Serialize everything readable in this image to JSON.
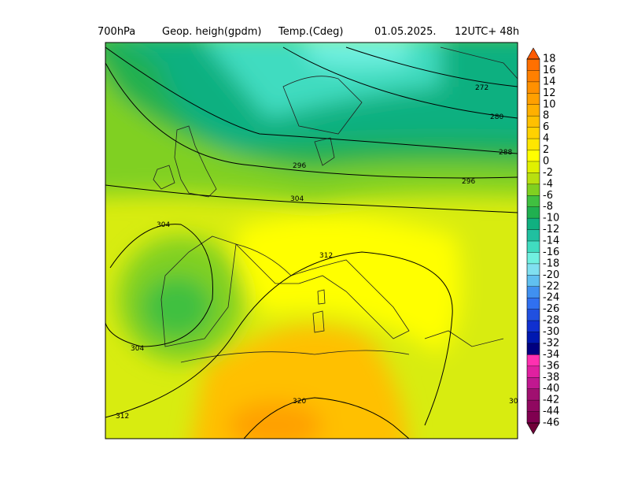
{
  "title": {
    "level": "700hPa",
    "field1": "Geop. heigh(gpdm)",
    "field2": "Temp.(Cdeg)",
    "date": "01.05.2025.",
    "run": "12UTC+ 48h"
  },
  "contour_labels": [
    "272",
    "280",
    "288",
    "296",
    "296",
    "304",
    "304",
    "304",
    "312",
    "312",
    "320",
    "30"
  ],
  "colorbar": {
    "labels": [
      18,
      16,
      14,
      12,
      10,
      8,
      6,
      4,
      2,
      0,
      -2,
      -4,
      -6,
      -8,
      -10,
      -12,
      -14,
      -16,
      -18,
      -20,
      -22,
      -24,
      -26,
      -28,
      -30,
      -32,
      -34,
      -36,
      -38,
      -40,
      -42,
      -44,
      -46
    ],
    "colors": [
      "#ff7000",
      "#ff8000",
      "#ff9000",
      "#ffa000",
      "#ffb000",
      "#ffc000",
      "#ffd200",
      "#ffe600",
      "#ffff00",
      "#e0f000",
      "#b8e010",
      "#80d020",
      "#40c040",
      "#20b050",
      "#10b080",
      "#20c0a0",
      "#40dcc0",
      "#70f0e0",
      "#80e0f0",
      "#60c0f0",
      "#4090f0",
      "#3070f0",
      "#2050e0",
      "#1030d0",
      "#0018b0",
      "#000080",
      "#ff30b0",
      "#e020a0",
      "#c01890",
      "#a01070",
      "#900860",
      "#800050"
    ],
    "over_color": "#ff5a00",
    "under_color": "#700038"
  }
}
